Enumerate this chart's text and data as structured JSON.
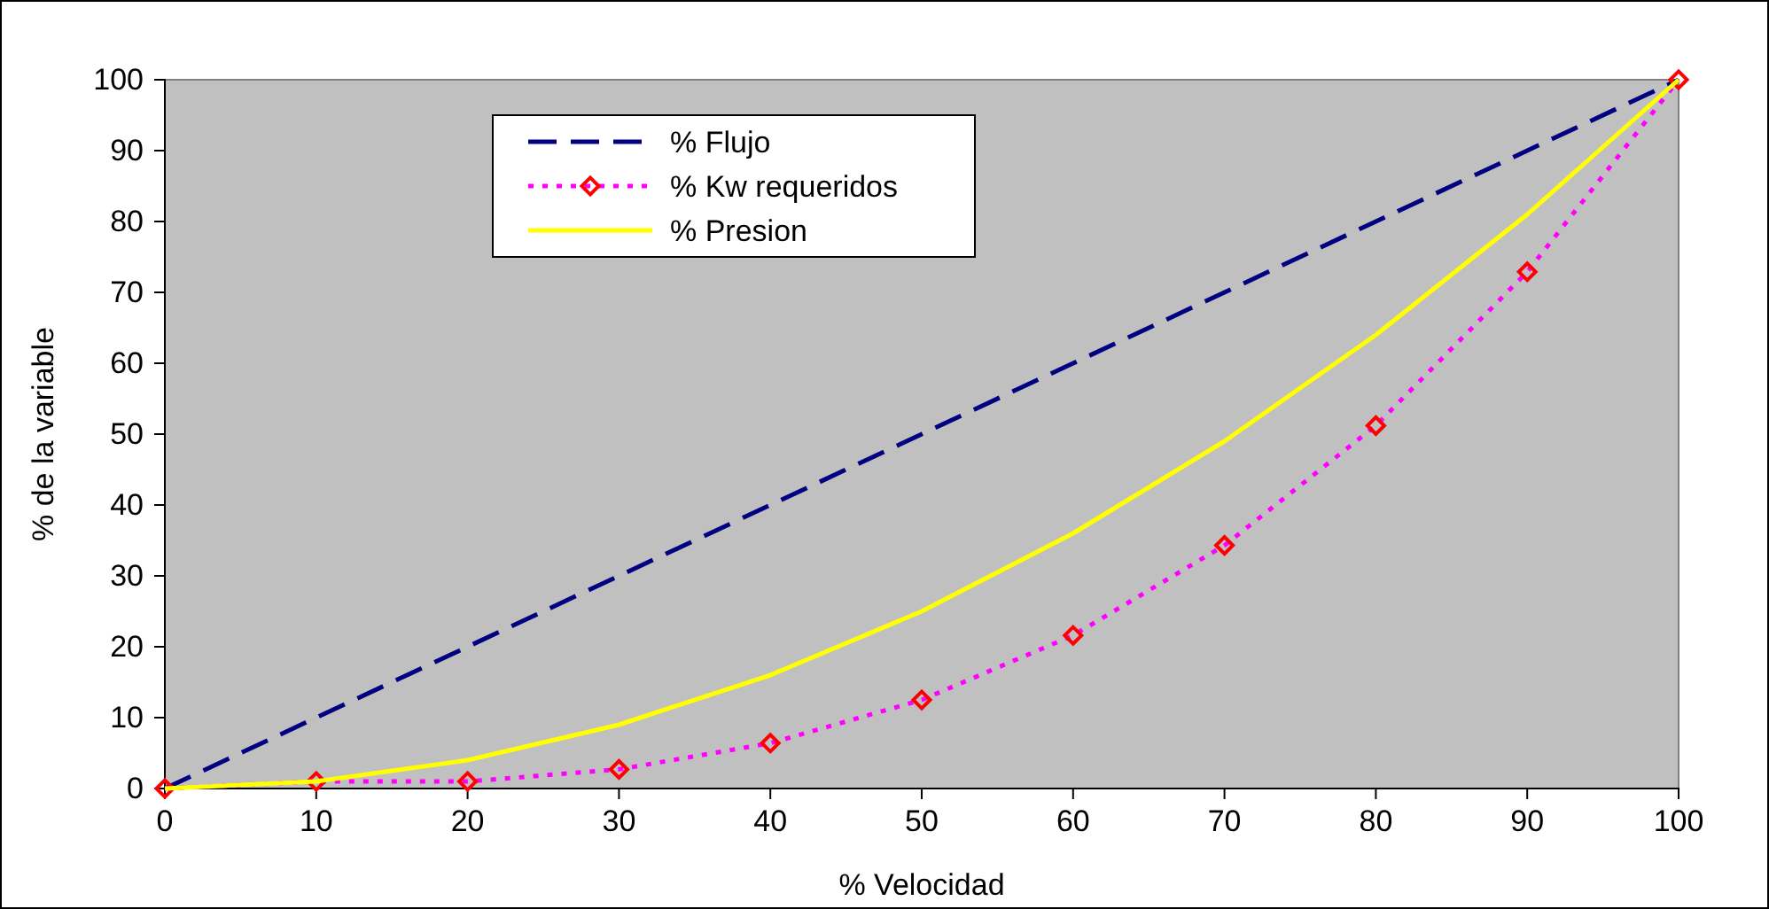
{
  "chart_data": {
    "type": "line",
    "xlabel": "% Velocidad",
    "ylabel": "% de la variable",
    "x": [
      0,
      10,
      20,
      30,
      40,
      50,
      60,
      70,
      80,
      90,
      100
    ],
    "xlim": [
      0,
      100
    ],
    "ylim": [
      0,
      100
    ],
    "xticks": [
      0,
      10,
      20,
      30,
      40,
      50,
      60,
      70,
      80,
      90,
      100
    ],
    "yticks": [
      0,
      10,
      20,
      30,
      40,
      50,
      60,
      70,
      80,
      90,
      100
    ],
    "grid": false,
    "legend": "top left",
    "series": [
      {
        "name": "% Flujo",
        "color": "#000080",
        "line_style": "dashed",
        "marker": "none",
        "values": [
          0,
          10,
          20,
          30,
          40,
          50,
          60,
          70,
          80,
          90,
          100
        ]
      },
      {
        "name": "% Kw requeridos",
        "color": "#ff00ff",
        "line_style": "dotted",
        "marker": "diamond",
        "values": [
          0,
          1,
          1,
          2.7,
          6.4,
          12.5,
          21.6,
          34.3,
          51.2,
          72.9,
          100
        ]
      },
      {
        "name": "% Presion",
        "color": "#ffff00",
        "line_style": "solid",
        "marker": "none",
        "values": [
          0,
          1,
          4,
          9,
          16,
          25,
          36,
          49,
          64,
          81,
          100
        ]
      }
    ]
  }
}
